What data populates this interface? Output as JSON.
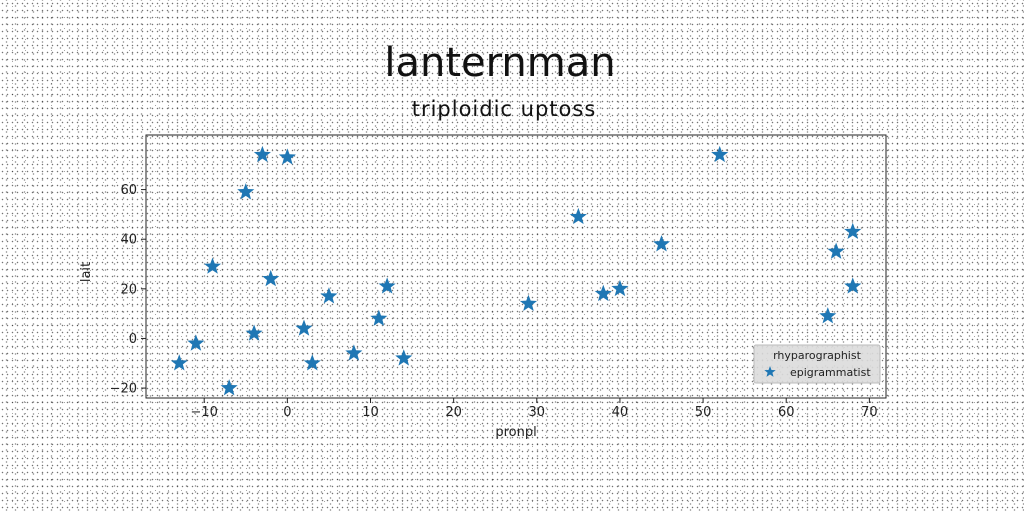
{
  "chart_data": {
    "type": "scatter",
    "title": "lanternman",
    "subtitle": "triploidic uptoss",
    "xlabel": "pronpl",
    "ylabel": "lait",
    "xlim": [
      -17,
      72
    ],
    "ylim": [
      -24,
      82
    ],
    "xticks": [
      -10,
      0,
      10,
      20,
      30,
      40,
      50,
      60,
      70
    ],
    "yticks": [
      -20,
      0,
      20,
      40,
      60
    ],
    "grid": false,
    "legend": {
      "title": "rhyparographist",
      "placement": "bottom-right"
    },
    "series": [
      {
        "name": "epigrammatist",
        "marker": "star",
        "color": "#1f77b4",
        "points": [
          {
            "x": -13,
            "y": -10
          },
          {
            "x": -11,
            "y": -2
          },
          {
            "x": -9,
            "y": 29
          },
          {
            "x": -7,
            "y": -20
          },
          {
            "x": -5,
            "y": 59
          },
          {
            "x": -4,
            "y": 2
          },
          {
            "x": -3,
            "y": 74
          },
          {
            "x": -2,
            "y": 24
          },
          {
            "x": 0,
            "y": 73
          },
          {
            "x": 2,
            "y": 4
          },
          {
            "x": 3,
            "y": -10
          },
          {
            "x": 5,
            "y": 17
          },
          {
            "x": 8,
            "y": -6
          },
          {
            "x": 11,
            "y": 8
          },
          {
            "x": 12,
            "y": 21
          },
          {
            "x": 14,
            "y": -8
          },
          {
            "x": 29,
            "y": 14
          },
          {
            "x": 35,
            "y": 49
          },
          {
            "x": 38,
            "y": 18
          },
          {
            "x": 40,
            "y": 20
          },
          {
            "x": 45,
            "y": 38
          },
          {
            "x": 52,
            "y": 74
          },
          {
            "x": 65,
            "y": 9
          },
          {
            "x": 66,
            "y": 35
          },
          {
            "x": 68,
            "y": 43
          },
          {
            "x": 68,
            "y": 21
          }
        ]
      }
    ]
  }
}
